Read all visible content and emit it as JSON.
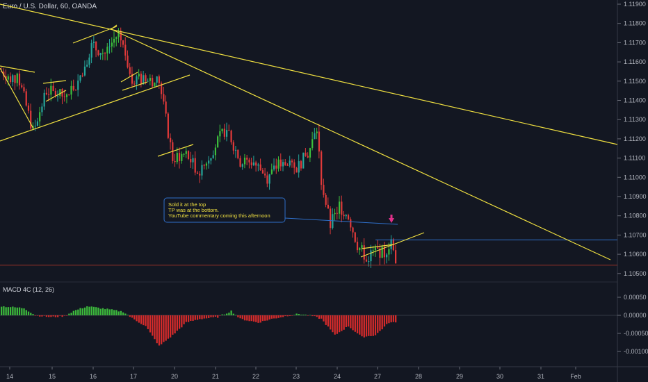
{
  "header": {
    "title": "Euro / U.S. Dollar, 60, OANDA"
  },
  "annotation": {
    "lines": [
      "Sold it at the top",
      "TP was at the bottom.",
      "YouTube commentary coming this afternoon"
    ]
  },
  "colors": {
    "background": "#131722",
    "up_candle": "#26a69a",
    "up_candle_bright": "#3cc03c",
    "down_candle": "#e23a3a",
    "trendline": "#f0e040",
    "level_line": "#2f6fc9",
    "current_price_line": "#c0392b",
    "macd_positive": "#3cb83c",
    "macd_negative": "#d42b2b",
    "arrow": "#e0308a"
  },
  "chart_data": [
    {
      "type": "candlestick",
      "title": "Euro / U.S. Dollar, 60, OANDA",
      "ylim": [
        1.1045,
        1.1195
      ],
      "y_ticks": [
        "1.11900",
        "1.11800",
        "1.11700",
        "1.11600",
        "1.11500",
        "1.11400",
        "1.11300",
        "1.11200",
        "1.11100",
        "1.11000",
        "1.10900",
        "1.10800",
        "1.10700",
        "1.10600",
        "1.10500"
      ],
      "x_ticks": [
        "14",
        "15",
        "16",
        "17",
        "20",
        "21",
        "22",
        "23",
        "24",
        "27",
        "28",
        "29",
        "30",
        "31",
        "Feb"
      ],
      "close_path": [
        [
          0,
          1.1155
        ],
        [
          8,
          1.115
        ],
        [
          14,
          1.1124
        ],
        [
          20,
          1.1145
        ],
        [
          28,
          1.1142
        ],
        [
          34,
          1.115
        ],
        [
          40,
          1.1168
        ],
        [
          46,
          1.1165
        ],
        [
          52,
          1.1175
        ],
        [
          58,
          1.1152
        ],
        [
          64,
          1.115
        ],
        [
          70,
          1.115
        ],
        [
          76,
          1.111
        ],
        [
          82,
          1.1112
        ],
        [
          88,
          1.1102
        ],
        [
          94,
          1.1115
        ],
        [
          100,
          1.1126
        ],
        [
          106,
          1.1108
        ],
        [
          112,
          1.1108
        ],
        [
          118,
          1.11
        ],
        [
          124,
          1.1108
        ],
        [
          130,
          1.1104
        ],
        [
          136,
          1.1112
        ],
        [
          140,
          1.1125
        ],
        [
          142,
          1.1098
        ],
        [
          146,
          1.1075
        ],
        [
          150,
          1.1085
        ],
        [
          154,
          1.108
        ],
        [
          158,
          1.1065
        ],
        [
          162,
          1.1058
        ],
        [
          166,
          1.1062
        ],
        [
          170,
          1.106
        ],
        [
          173,
          1.1068
        ],
        [
          175,
          1.1053
        ]
      ],
      "horizontal_levels": [
        1.10675,
        1.10543
      ],
      "arrow_marker": {
        "direction": "down",
        "price": 1.1072
      }
    },
    {
      "type": "bar",
      "title": "MACD 4C (12, 26)",
      "ylim": [
        -0.0012,
        0.0009
      ],
      "y_ticks": [
        "0.00050",
        "0.00000",
        "-0.00050",
        "-0.00100"
      ],
      "profile": [
        [
          0,
          0.00025
        ],
        [
          10,
          0.0002
        ],
        [
          15,
          0.0
        ],
        [
          22,
          -5e-05
        ],
        [
          28,
          -2e-05
        ],
        [
          32,
          0.00012
        ],
        [
          38,
          0.00025
        ],
        [
          46,
          0.00018
        ],
        [
          54,
          0.0001
        ],
        [
          58,
          -8e-05
        ],
        [
          64,
          -0.0003
        ],
        [
          70,
          -0.00085
        ],
        [
          76,
          -0.00055
        ],
        [
          82,
          -0.0002
        ],
        [
          88,
          -0.0001
        ],
        [
          96,
          -5e-05
        ],
        [
          102,
          0.00012
        ],
        [
          106,
          -0.0001
        ],
        [
          114,
          -0.0002
        ],
        [
          120,
          -0.0001
        ],
        [
          128,
          0.0
        ],
        [
          132,
          4e-05
        ],
        [
          138,
          -2e-05
        ],
        [
          142,
          -0.0001
        ],
        [
          148,
          -0.00055
        ],
        [
          154,
          -0.0003
        ],
        [
          160,
          -0.0006
        ],
        [
          166,
          -0.00055
        ],
        [
          172,
          -0.0002
        ],
        [
          175,
          -0.0002
        ]
      ]
    }
  ]
}
